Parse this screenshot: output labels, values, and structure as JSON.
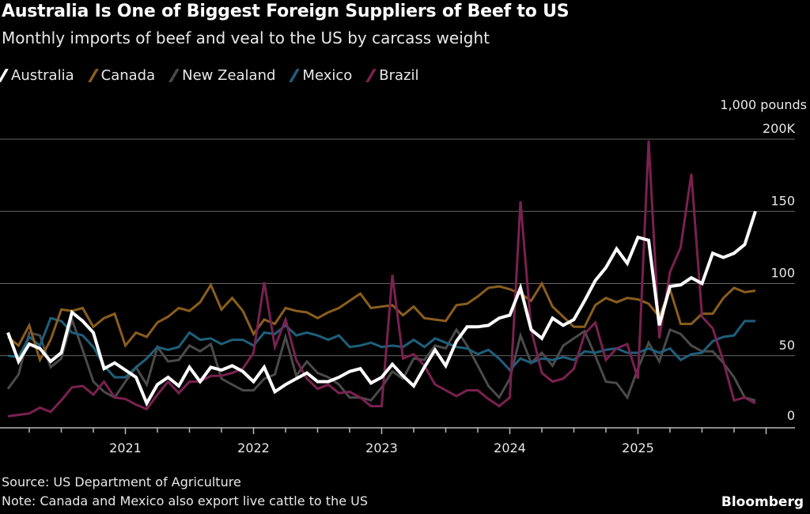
{
  "title": "Australia Is One of Biggest Foreign Suppliers of Beef to US",
  "subtitle": "Monthly imports of beef and veal to the US by carcass weight",
  "footer": {
    "source": "Source: US Department of Agriculture",
    "note": "Note: Canada and Mexico also export live cattle to the US",
    "brand": "Bloomberg"
  },
  "chart_data": {
    "type": "line",
    "title": "Australia Is One of Biggest Foreign Suppliers of Beef to US",
    "subtitle": "Monthly imports of beef and veal to the US by carcass weight",
    "ylabel": "1,000 pounds",
    "ylim": [
      0,
      200
    ],
    "yticks": [
      0,
      50,
      100,
      150,
      200
    ],
    "ytick_labels": [
      "0",
      "50",
      "100",
      "150",
      "200K"
    ],
    "xticks": [
      "2021",
      "2022",
      "2023",
      "2024",
      "2025"
    ],
    "x_start": "2020-02",
    "x_end": "2025-12",
    "x_frequency": "monthly",
    "grid": true,
    "legend": "top-left",
    "series": [
      {
        "name": "Australia",
        "color": "#ffffff",
        "values": [
          66,
          46,
          58,
          55,
          46,
          52,
          80,
          74,
          66,
          41,
          45,
          40,
          35,
          17,
          30,
          35,
          29,
          42,
          32,
          42,
          40,
          43,
          39,
          32,
          42,
          25,
          30,
          34,
          38,
          32,
          32,
          35,
          39,
          41,
          31,
          35,
          44,
          36,
          29,
          42,
          54,
          43,
          60,
          70,
          70,
          71,
          76,
          78,
          97,
          68,
          62,
          76,
          71,
          75,
          88,
          102,
          111,
          124,
          114,
          132,
          130,
          71,
          98,
          99,
          104,
          100,
          121,
          118,
          121,
          127,
          150
        ]
      },
      {
        "name": "Canada",
        "color": "#8a5e1e",
        "values": [
          63,
          57,
          71,
          47,
          61,
          82,
          81,
          83,
          70,
          76,
          79,
          57,
          66,
          63,
          73,
          77,
          83,
          81,
          87,
          99,
          82,
          90,
          81,
          65,
          75,
          72,
          83,
          81,
          80,
          76,
          80,
          83,
          88,
          93,
          83,
          84,
          85,
          78,
          84,
          76,
          75,
          74,
          85,
          86,
          91,
          97,
          98,
          96,
          93,
          88,
          100,
          84,
          77,
          70,
          70,
          85,
          90,
          87,
          90,
          89,
          86,
          77,
          96,
          72,
          72,
          79,
          79,
          90,
          97,
          94,
          95
        ]
      },
      {
        "name": "New Zealand",
        "color": "#4a4a4a",
        "values": [
          27,
          37,
          66,
          64,
          42,
          48,
          75,
          54,
          32,
          25,
          21,
          32,
          42,
          30,
          56,
          46,
          47,
          57,
          53,
          58,
          34,
          30,
          26,
          26,
          34,
          37,
          63,
          36,
          46,
          38,
          35,
          30,
          21,
          21,
          19,
          28,
          39,
          34,
          48,
          47,
          57,
          55,
          68,
          57,
          43,
          29,
          21,
          34,
          64,
          45,
          52,
          43,
          57,
          62,
          67,
          50,
          32,
          31,
          21,
          41,
          59,
          46,
          68,
          65,
          57,
          53,
          53,
          45,
          35,
          21,
          19
        ]
      },
      {
        "name": "Mexico",
        "color": "#1f5f7a",
        "values": [
          50,
          49,
          63,
          57,
          76,
          74,
          66,
          64,
          56,
          43,
          35,
          35,
          42,
          48,
          56,
          54,
          56,
          66,
          61,
          62,
          58,
          61,
          61,
          57,
          66,
          65,
          71,
          64,
          66,
          64,
          61,
          64,
          56,
          57,
          59,
          56,
          57,
          56,
          61,
          56,
          62,
          59,
          56,
          55,
          51,
          54,
          48,
          40,
          48,
          45,
          48,
          47,
          49,
          47,
          53,
          52,
          54,
          55,
          52,
          52,
          55,
          52,
          55,
          47,
          51,
          52,
          60,
          63,
          64,
          74,
          74
        ]
      },
      {
        "name": "Brazil",
        "color": "#7a2150",
        "values": [
          8,
          9,
          10,
          14,
          11,
          19,
          28,
          29,
          23,
          32,
          21,
          20,
          16,
          13,
          23,
          32,
          24,
          32,
          32,
          36,
          36,
          38,
          41,
          52,
          101,
          56,
          75,
          47,
          34,
          27,
          30,
          24,
          25,
          21,
          15,
          15,
          106,
          48,
          51,
          43,
          30,
          26,
          22,
          26,
          26,
          20,
          15,
          21,
          157,
          68,
          38,
          32,
          34,
          41,
          65,
          73,
          47,
          55,
          58,
          34,
          199,
          62,
          108,
          125,
          176,
          77,
          69,
          46,
          19,
          21,
          17
        ]
      }
    ]
  }
}
